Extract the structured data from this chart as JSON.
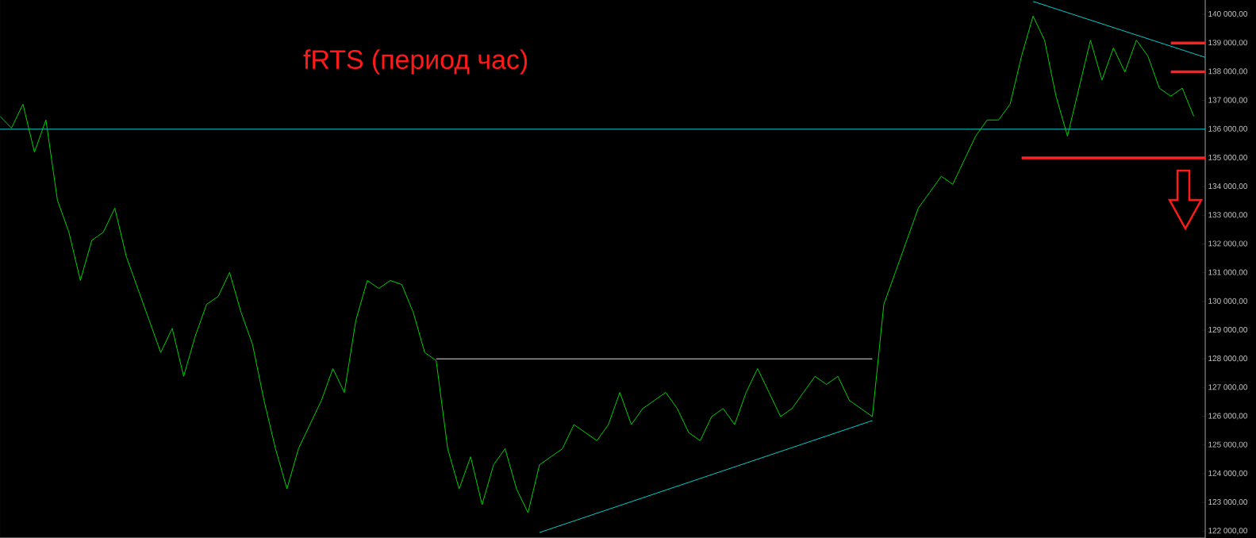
{
  "chart_data": {
    "type": "line",
    "title": "fRTS (период час)",
    "categories": [
      null,
      null,
      null,
      null,
      null,
      null,
      null,
      null,
      null,
      null,
      null,
      null,
      null,
      null,
      null,
      null,
      null,
      null,
      null,
      null,
      null,
      null,
      null,
      null,
      null,
      null,
      null,
      null,
      null,
      null,
      null,
      null,
      null,
      null,
      null,
      null,
      null,
      null,
      null,
      null,
      null,
      null,
      null,
      null,
      null,
      null,
      null,
      null,
      null,
      null,
      null,
      null,
      null,
      null,
      null,
      null,
      null,
      null,
      null,
      null,
      null,
      null,
      null,
      null,
      null,
      null,
      null,
      null,
      null,
      null,
      null,
      null,
      null,
      null,
      null,
      null,
      null,
      null,
      null,
      null,
      null,
      null,
      null,
      null,
      null,
      null,
      null,
      null,
      null,
      null,
      null,
      null,
      null,
      null,
      null,
      null,
      null,
      null,
      null,
      null,
      null,
      null,
      null,
      null,
      null,
      null
    ],
    "series": [
      {
        "color": "#00d000",
        "values": [
          136450,
          136040,
          136870,
          135200,
          136320,
          133530,
          132410,
          130730,
          132130,
          132410,
          133250,
          131570,
          130450,
          129340,
          128220,
          129060,
          127390,
          128780,
          129900,
          130170,
          131010,
          129620,
          128500,
          126550,
          124870,
          123470,
          124870,
          125710,
          126550,
          127660,
          126830,
          129340,
          130730,
          130450,
          130730,
          130590,
          129620,
          128220,
          127940,
          124870,
          123470,
          124590,
          122920,
          124310,
          124870,
          123470,
          122640,
          124310,
          124590,
          124870,
          125710,
          125430,
          125150,
          125710,
          126830,
          125710,
          126270,
          126550,
          126830,
          126270,
          125430,
          125150,
          125990,
          126270,
          125710,
          126830,
          127660,
          126830,
          125990,
          126270,
          126830,
          127390,
          127110,
          127390,
          126550,
          126270,
          125990,
          129900,
          131010,
          132130,
          133250,
          133800,
          134360,
          134080,
          134920,
          135760,
          136320,
          136320,
          136870,
          138550,
          139940,
          139100,
          137150,
          135760,
          137430,
          139100,
          137710,
          138830,
          137990,
          139100,
          138550,
          137430,
          137150,
          137430,
          136450,
          null
        ]
      },
      {
        "type": "line",
        "color": "#00cccc",
        "values": [
          null,
          null,
          null,
          null,
          null,
          null,
          null,
          null,
          null,
          null,
          null,
          null,
          null,
          null,
          null,
          null,
          null,
          null,
          null,
          null,
          null,
          null,
          null,
          null,
          null,
          null,
          null,
          null,
          null,
          null,
          null,
          null,
          null,
          null,
          null,
          null,
          null,
          null,
          null,
          null,
          null,
          null,
          null,
          null,
          null,
          null,
          null,
          null,
          null,
          null,
          null,
          null,
          null,
          null,
          null,
          null,
          null,
          null,
          null,
          null,
          null,
          null,
          null,
          null,
          null,
          null,
          null,
          null,
          null,
          null,
          null,
          null,
          null,
          null,
          null,
          null,
          null,
          null,
          null,
          null,
          null,
          null,
          null,
          null,
          null,
          null,
          null,
          null,
          null,
          null,
          140450,
          null,
          null,
          null,
          null,
          null,
          null,
          null,
          null,
          null,
          null,
          null,
          null,
          null,
          null,
          138500
        ]
      },
      {
        "type": "line",
        "color": "#00cccc",
        "values": [
          null,
          null,
          null,
          null,
          null,
          null,
          null,
          null,
          null,
          null,
          null,
          null,
          null,
          null,
          null,
          null,
          null,
          null,
          null,
          null,
          null,
          null,
          null,
          null,
          null,
          null,
          null,
          null,
          null,
          null,
          null,
          null,
          null,
          null,
          null,
          null,
          null,
          null,
          null,
          null,
          null,
          null,
          null,
          null,
          null,
          null,
          null,
          121950,
          null,
          null,
          null,
          null,
          null,
          null,
          null,
          null,
          null,
          null,
          null,
          null,
          null,
          null,
          null,
          null,
          null,
          null,
          null,
          null,
          null,
          null,
          null,
          null,
          null,
          null,
          null,
          null,
          125850,
          null,
          null,
          null,
          null,
          null,
          null,
          null,
          null,
          null,
          null,
          null,
          null,
          null,
          null,
          null,
          null,
          null,
          null,
          null,
          null,
          null,
          null,
          null,
          null,
          null,
          null,
          null,
          null,
          null
        ]
      },
      {
        "type": "line",
        "color": "#e0e0e0",
        "values": [
          null,
          null,
          null,
          null,
          null,
          null,
          null,
          null,
          null,
          null,
          null,
          null,
          null,
          null,
          null,
          null,
          null,
          null,
          null,
          null,
          null,
          null,
          null,
          null,
          null,
          null,
          null,
          null,
          null,
          null,
          null,
          null,
          null,
          null,
          null,
          null,
          null,
          null,
          128000,
          null,
          null,
          null,
          null,
          null,
          null,
          null,
          null,
          null,
          null,
          null,
          null,
          null,
          null,
          null,
          null,
          null,
          null,
          null,
          null,
          null,
          null,
          null,
          null,
          null,
          null,
          null,
          null,
          null,
          null,
          null,
          null,
          null,
          null,
          null,
          null,
          null,
          128000,
          null,
          null,
          null,
          null,
          null,
          null,
          null,
          null,
          null,
          null,
          null,
          null,
          null,
          null,
          null,
          null,
          null,
          null,
          null,
          null,
          null,
          null,
          null,
          null,
          null,
          null,
          null,
          null,
          null
        ]
      },
      {
        "type": "line",
        "color": "#ff2020",
        "values": [
          null,
          null,
          null,
          null,
          null,
          null,
          null,
          null,
          null,
          null,
          null,
          null,
          null,
          null,
          null,
          null,
          null,
          null,
          null,
          null,
          null,
          null,
          null,
          null,
          null,
          null,
          null,
          null,
          null,
          null,
          null,
          null,
          null,
          null,
          null,
          null,
          null,
          null,
          null,
          null,
          null,
          null,
          null,
          null,
          null,
          null,
          null,
          null,
          null,
          null,
          null,
          null,
          null,
          null,
          null,
          null,
          null,
          null,
          null,
          null,
          null,
          null,
          null,
          null,
          null,
          null,
          null,
          null,
          null,
          null,
          null,
          null,
          null,
          null,
          null,
          null,
          null,
          null,
          null,
          null,
          null,
          null,
          null,
          null,
          null,
          null,
          null,
          null,
          null,
          null,
          null,
          null,
          null,
          null,
          null,
          null,
          null,
          null,
          null,
          null,
          null,
          null,
          139000,
          null,
          null,
          139000
        ]
      },
      {
        "type": "line",
        "color": "#ff2020",
        "values": [
          null,
          null,
          null,
          null,
          null,
          null,
          null,
          null,
          null,
          null,
          null,
          null,
          null,
          null,
          null,
          null,
          null,
          null,
          null,
          null,
          null,
          null,
          null,
          null,
          null,
          null,
          null,
          null,
          null,
          null,
          null,
          null,
          null,
          null,
          null,
          null,
          null,
          null,
          null,
          null,
          null,
          null,
          null,
          null,
          null,
          null,
          null,
          null,
          null,
          null,
          null,
          null,
          null,
          null,
          null,
          null,
          null,
          null,
          null,
          null,
          null,
          null,
          null,
          null,
          null,
          null,
          null,
          null,
          null,
          null,
          null,
          null,
          null,
          null,
          null,
          null,
          null,
          null,
          null,
          null,
          null,
          null,
          null,
          null,
          null,
          null,
          null,
          null,
          null,
          null,
          null,
          null,
          null,
          null,
          null,
          null,
          null,
          null,
          null,
          null,
          null,
          null,
          138000,
          null,
          null,
          138000
        ]
      },
      {
        "type": "line",
        "color": "#ff2020",
        "values": [
          null,
          null,
          null,
          null,
          null,
          null,
          null,
          null,
          null,
          null,
          null,
          null,
          null,
          null,
          null,
          null,
          null,
          null,
          null,
          null,
          null,
          null,
          null,
          null,
          null,
          null,
          null,
          null,
          null,
          null,
          null,
          null,
          null,
          null,
          null,
          null,
          null,
          null,
          null,
          null,
          null,
          null,
          null,
          null,
          null,
          null,
          null,
          null,
          null,
          null,
          null,
          null,
          null,
          null,
          null,
          null,
          null,
          null,
          null,
          null,
          null,
          null,
          null,
          null,
          null,
          null,
          null,
          null,
          null,
          null,
          null,
          null,
          null,
          null,
          null,
          null,
          null,
          null,
          null,
          null,
          null,
          null,
          null,
          null,
          null,
          null,
          null,
          null,
          null,
          135000,
          null,
          null,
          null,
          null,
          null,
          null,
          null,
          null,
          null,
          null,
          null,
          null,
          null,
          null,
          null,
          135000
        ]
      }
    ],
    "ylim": [
      121760,
      140500
    ],
    "yticks": [
      {
        "value": 122000,
        "label": "122 000,00"
      },
      {
        "value": 123000,
        "label": "123 000,00"
      },
      {
        "value": 124000,
        "label": "124 000,00"
      },
      {
        "value": 125000,
        "label": "125 000,00"
      },
      {
        "value": 126000,
        "label": "126 000,00"
      },
      {
        "value": 127000,
        "label": "127 000,00"
      },
      {
        "value": 128000,
        "label": "128 000,00"
      },
      {
        "value": 129000,
        "label": "129 000,00"
      },
      {
        "value": 130000,
        "label": "130 000,00"
      },
      {
        "value": 131000,
        "label": "131 000,00"
      },
      {
        "value": 132000,
        "label": "132 000,00"
      },
      {
        "value": 133000,
        "label": "133 000,00"
      },
      {
        "value": 134000,
        "label": "134 000,00"
      },
      {
        "value": 135000,
        "label": "135 000,00"
      },
      {
        "value": 136000,
        "label": "136 000,00"
      },
      {
        "value": 137000,
        "label": "137 000,00"
      },
      {
        "value": 138000,
        "label": "138 000,00"
      },
      {
        "value": 139000,
        "label": "139 000,00"
      },
      {
        "value": 140000,
        "label": "140 000,00"
      }
    ],
    "tick_labels": "y",
    "ref_lines": [
      {
        "axis": "y",
        "value": 136000,
        "color": "#00cccc"
      }
    ]
  }
}
